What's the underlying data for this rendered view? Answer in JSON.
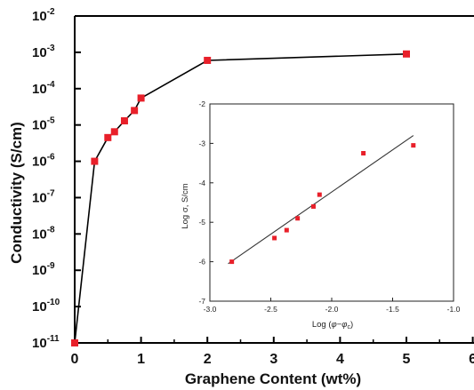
{
  "chart_data": [
    {
      "type": "line",
      "xlabel": "Graphene Content (wt%)",
      "ylabel": "Conductivity (S/cm)",
      "xlim": [
        0,
        6
      ],
      "ylim": [
        1e-11,
        0.01
      ],
      "yscale": "log",
      "grid": false,
      "x_ticks": [
        {
          "v": 0,
          "label": "0"
        },
        {
          "v": 1,
          "label": "1"
        },
        {
          "v": 2,
          "label": "2"
        },
        {
          "v": 3,
          "label": "3"
        },
        {
          "v": 4,
          "label": "4"
        },
        {
          "v": 5,
          "label": "5"
        },
        {
          "v": 6,
          "label": "6"
        }
      ],
      "y_ticks": [
        {
          "v": -11,
          "base": "10",
          "exp": "-11"
        },
        {
          "v": -10,
          "base": "10",
          "exp": "-10"
        },
        {
          "v": -9,
          "base": "10",
          "exp": "-9"
        },
        {
          "v": -8,
          "base": "10",
          "exp": "-8"
        },
        {
          "v": -7,
          "base": "10",
          "exp": "-7"
        },
        {
          "v": -6,
          "base": "10",
          "exp": "-6"
        },
        {
          "v": -5,
          "base": "10",
          "exp": "-5"
        },
        {
          "v": -4,
          "base": "10",
          "exp": "-4"
        },
        {
          "v": -3,
          "base": "10",
          "exp": "-3"
        },
        {
          "v": -2,
          "base": "10",
          "exp": "-2"
        }
      ],
      "series": [
        {
          "color": "#e8202a",
          "marker": "square",
          "x": [
            0,
            0.3,
            0.5,
            0.6,
            0.75,
            0.9,
            1.0,
            2.0,
            5.0
          ],
          "y": [
            1e-11,
            1e-06,
            4.5e-06,
            6.5e-06,
            1.3e-05,
            2.5e-05,
            5.5e-05,
            0.0006,
            0.0009
          ]
        }
      ]
    },
    {
      "type": "scatter",
      "xlabel_prefix": "Log (",
      "xlabel_phi": "φ",
      "xlabel_minus": "−",
      "xlabel_sub": "c",
      "xlabel_suffix": ")",
      "ylabel": "Log σ, S/cm",
      "xlim": [
        -3.0,
        -1.0
      ],
      "ylim": [
        -7,
        -2
      ],
      "x_ticks": [
        "-3.0",
        "-2.5",
        "-2.0",
        "-1.5",
        "-1.0"
      ],
      "y_ticks": [
        "-7",
        "-6",
        "-5",
        "-4",
        "-3",
        "-2"
      ],
      "x_tick_values": [
        -3.0,
        -2.5,
        -2.0,
        -1.5,
        -1.0
      ],
      "y_tick_values": [
        -7,
        -6,
        -5,
        -4,
        -3,
        -2
      ],
      "points": {
        "color": "#e8202a",
        "x": [
          -2.82,
          -2.47,
          -2.37,
          -2.28,
          -2.15,
          -2.1,
          -1.74,
          -1.33
        ],
        "y": [
          -6.0,
          -5.4,
          -5.2,
          -4.9,
          -4.6,
          -4.3,
          -3.25,
          -3.05
        ]
      },
      "fit": {
        "color": "#333333",
        "x": [
          -2.85,
          -1.33
        ],
        "y": [
          -6.05,
          -2.8
        ]
      }
    }
  ]
}
